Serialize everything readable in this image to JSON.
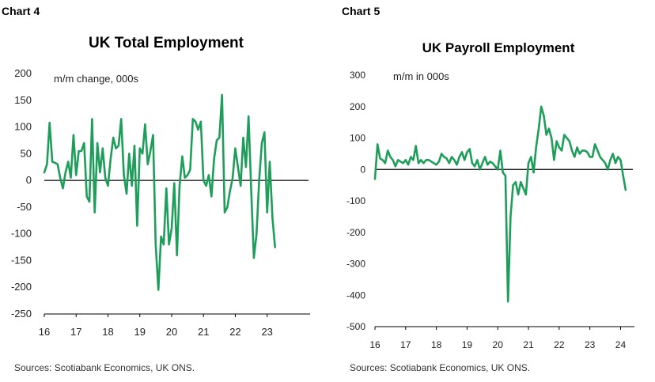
{
  "chart_data": [
    {
      "type": "line",
      "label": "Chart 4",
      "title": "UK Total Employment",
      "unit_label": "m/m change, 000s",
      "source": "Sources: Scotiabank Economics, UK ONS.",
      "color": "#1e9e5a",
      "ylim": [
        -250,
        200
      ],
      "yticks": [
        "200",
        "150",
        "100",
        "50",
        "0",
        "-50",
        "-100",
        "-150",
        "-200",
        "-250"
      ],
      "yticks_values": [
        200,
        150,
        100,
        50,
        0,
        -50,
        -100,
        -150,
        -200,
        -250
      ],
      "xlim": [
        2016,
        2024.3
      ],
      "xticks": [
        "16",
        "17",
        "18",
        "19",
        "20",
        "21",
        "22",
        "23"
      ],
      "xticks_values": [
        2016,
        2017,
        2018,
        2019,
        2020,
        2021,
        2022,
        2023
      ],
      "x_interval_months": 1,
      "x_start": 2016.0,
      "values": [
        15,
        30,
        108,
        35,
        33,
        30,
        5,
        -15,
        15,
        35,
        5,
        85,
        10,
        55,
        55,
        70,
        -30,
        -40,
        115,
        -60,
        70,
        15,
        60,
        5,
        -10,
        40,
        80,
        60,
        65,
        115,
        10,
        -25,
        50,
        -10,
        65,
        -85,
        60,
        50,
        105,
        30,
        55,
        85,
        -120,
        -205,
        -105,
        -120,
        -15,
        -120,
        -90,
        -5,
        -140,
        -10,
        45,
        5,
        10,
        20,
        115,
        110,
        95,
        110,
        0,
        -10,
        10,
        -30,
        40,
        75,
        80,
        160,
        -60,
        -50,
        -20,
        5,
        60,
        25,
        -10,
        80,
        25,
        120,
        -20,
        -145,
        -100,
        0,
        70,
        90,
        -60,
        35,
        -70,
        -125
      ]
    },
    {
      "type": "line",
      "label": "Chart 5",
      "title": "UK Payroll Employment",
      "unit_label": "m/m in 000s",
      "source": "Sources: Scotiabank Economics, UK ONS.",
      "color": "#1e9e5a",
      "ylim": [
        -500,
        300
      ],
      "yticks": [
        "300",
        "200",
        "100",
        "0",
        "-100",
        "-200",
        "-300",
        "-400",
        "-500"
      ],
      "yticks_values": [
        300,
        200,
        100,
        0,
        -100,
        -200,
        -300,
        -400,
        -500
      ],
      "xlim": [
        2016,
        2024.4
      ],
      "xticks": [
        "16",
        "17",
        "18",
        "19",
        "20",
        "21",
        "22",
        "23",
        "24"
      ],
      "xticks_values": [
        2016,
        2017,
        2018,
        2019,
        2020,
        2021,
        2022,
        2023,
        2024
      ],
      "x_interval_months": 1,
      "x_start": 2016.0,
      "values": [
        -30,
        80,
        35,
        30,
        20,
        60,
        40,
        30,
        10,
        30,
        25,
        20,
        30,
        15,
        40,
        30,
        75,
        20,
        30,
        20,
        30,
        30,
        25,
        20,
        15,
        25,
        50,
        40,
        35,
        20,
        40,
        30,
        15,
        40,
        55,
        30,
        55,
        65,
        20,
        10,
        30,
        0,
        20,
        40,
        15,
        25,
        20,
        10,
        0,
        60,
        -10,
        -20,
        -420,
        -150,
        -50,
        -40,
        -80,
        -40,
        -60,
        -80,
        20,
        40,
        -10,
        70,
        130,
        200,
        170,
        110,
        130,
        100,
        30,
        90,
        70,
        60,
        110,
        100,
        90,
        60,
        40,
        70,
        50,
        60,
        60,
        55,
        40,
        40,
        80,
        60,
        40,
        30,
        20,
        0,
        30,
        50,
        20,
        40,
        30,
        -20,
        -65
      ]
    }
  ]
}
